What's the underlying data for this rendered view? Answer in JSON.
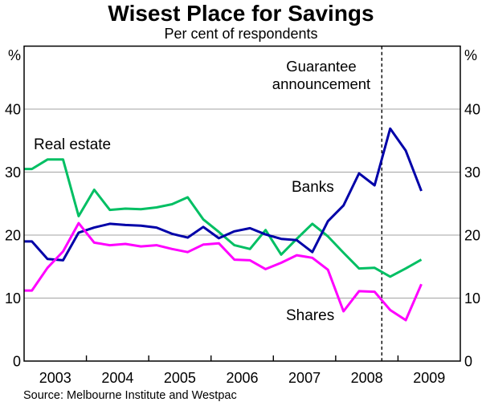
{
  "chart_data": {
    "type": "line",
    "title": "Wisest Place for Savings",
    "subtitle": "Per cent of respondents",
    "source": "Source: Melbourne Institute and Westpac",
    "x_axis": {
      "years": [
        2003,
        2004,
        2005,
        2006,
        2007,
        2008,
        2009
      ],
      "start": "2003Q1",
      "end": "2009Q2",
      "frequency": "quarterly"
    },
    "y_axis": {
      "unit": "%",
      "ylim": [
        0,
        50
      ],
      "gridlines": [
        10,
        20,
        30,
        40
      ],
      "zero_label": "0"
    },
    "grid": "horizontal-only",
    "legend_position": "inline-labels",
    "annotation": {
      "lines": [
        "Guarantee",
        "announcement"
      ],
      "year_fraction": 2008.74,
      "style": "dashed-vertical-line"
    },
    "series": [
      {
        "name": "Real estate",
        "color": "#00bf63",
        "values": [
          30.5,
          32,
          32,
          23,
          27.2,
          24,
          24.2,
          24.1,
          24.4,
          24.9,
          26,
          22.5,
          20.5,
          18.4,
          17.8,
          20.8,
          16.9,
          19.4,
          21.8,
          19.8,
          17.2,
          14.7,
          14.8,
          13.4,
          14.7,
          16.1
        ]
      },
      {
        "name": "Banks",
        "color": "#0000a8",
        "values": [
          19,
          16.2,
          16,
          20.4,
          21.2,
          21.8,
          21.6,
          21.5,
          21.2,
          20.2,
          19.6,
          21.3,
          19.5,
          20.6,
          21.1,
          20.1,
          19.4,
          19.2,
          17.3,
          22.2,
          24.7,
          29.8,
          27.9,
          36.9,
          33.4,
          27
        ]
      },
      {
        "name": "Shares",
        "color": "#ff00ff",
        "values": [
          11.2,
          14.8,
          17.4,
          21.9,
          18.8,
          18.4,
          18.6,
          18.2,
          18.4,
          17.8,
          17.3,
          18.5,
          18.7,
          16.1,
          16,
          14.6,
          15.6,
          16.8,
          16.4,
          14.5,
          7.9,
          11.1,
          11,
          8.1,
          6.5,
          12.2
        ]
      }
    ],
    "colors": {
      "grid": "#a3a3a3",
      "frame": "#000000",
      "annotation_line": "#000000"
    }
  }
}
